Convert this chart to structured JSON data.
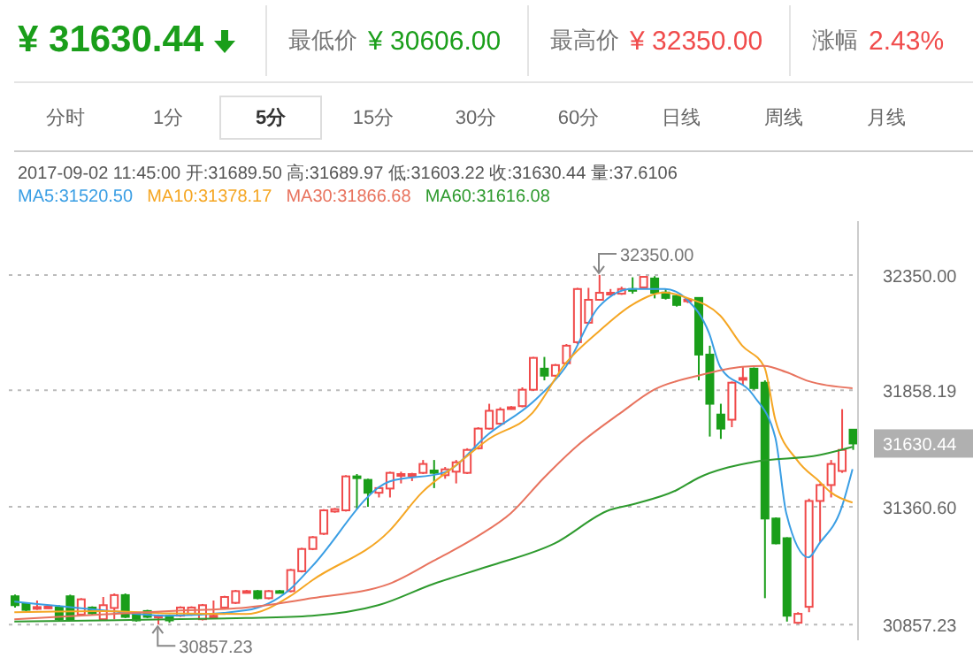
{
  "chart_data": {
    "type": "candlestick",
    "title": "¥ 31630.44",
    "subtitle": "2017-09-02 11:45:00 开:31689.50 高:31689.97 低:31603.22 收:31630.44 量:37.6106",
    "annotations": [
      "最低价 ¥ 30606.00",
      "最高价 ¥ 32350.00",
      "涨幅 2.43%",
      "分时",
      "1分",
      "5分",
      "15分",
      "30分",
      "60分",
      "日线",
      "周线",
      "月线",
      {
        "text": "32350.00",
        "y": 32350
      },
      {
        "text": "30857.23",
        "y": 30857.23
      }
    ],
    "categories": [
      null,
      null,
      null,
      null,
      null,
      null,
      null,
      null,
      null,
      null,
      null,
      null,
      null,
      null,
      null,
      null,
      null,
      null,
      null,
      null,
      null,
      null,
      null,
      null,
      null,
      null,
      null,
      null,
      null,
      null,
      null,
      null,
      null,
      null,
      null,
      null,
      null,
      null,
      null,
      null,
      null,
      null,
      null,
      null,
      null,
      null,
      null,
      null,
      null,
      null,
      null,
      null,
      null,
      null,
      null,
      null,
      null,
      null,
      null,
      null,
      null,
      null,
      null,
      null,
      null,
      null,
      null,
      null,
      null,
      null,
      null,
      null,
      null,
      null,
      null,
      null,
      null
    ],
    "ohlc": [
      [
        30978,
        30985,
        30930,
        30940
      ],
      [
        30945,
        30950,
        30915,
        30920
      ],
      [
        30925,
        30960,
        30920,
        30932
      ],
      [
        30930,
        30940,
        30925,
        30934
      ],
      [
        30930,
        30940,
        30870,
        30880
      ],
      [
        30978,
        30985,
        30875,
        30880
      ],
      [
        30900,
        30970,
        30895,
        30965
      ],
      [
        30930,
        30935,
        30900,
        30905
      ],
      [
        30880,
        30975,
        30875,
        30940
      ],
      [
        30928,
        30990,
        30880,
        30983
      ],
      [
        30983,
        30990,
        30885,
        30890
      ],
      [
        30905,
        30910,
        30870,
        30875
      ],
      [
        30915,
        30920,
        30885,
        30890
      ],
      [
        30890,
        30900,
        30857.23,
        30895
      ],
      [
        30895,
        30900,
        30865,
        30875
      ],
      [
        30895,
        30935,
        30890,
        30930
      ],
      [
        30900,
        30935,
        30895,
        30930
      ],
      [
        30880,
        30945,
        30875,
        30940
      ],
      [
        30890,
        30960,
        30885,
        30895
      ],
      [
        30930,
        30980,
        30925,
        30975
      ],
      [
        30950,
        31005,
        30945,
        31000
      ],
      [
        30995,
        31005,
        30990,
        31000
      ],
      [
        31000,
        31005,
        30965,
        30970
      ],
      [
        30970,
        31005,
        30965,
        31000
      ],
      [
        31000,
        31005,
        30990,
        30995
      ],
      [
        31000,
        31095,
        30995,
        31090
      ],
      [
        31085,
        31185,
        31080,
        31180
      ],
      [
        31180,
        31235,
        31175,
        31230
      ],
      [
        31245,
        31350,
        31240,
        31345
      ],
      [
        31340,
        31355,
        31335,
        31350
      ],
      [
        31345,
        31495,
        31340,
        31490
      ],
      [
        31490,
        31500,
        31350,
        31485
      ],
      [
        31475,
        31480,
        31360,
        31420
      ],
      [
        31420,
        31445,
        31400,
        31440
      ],
      [
        31438,
        31510,
        31400,
        31505
      ],
      [
        31495,
        31510,
        31460,
        31500
      ],
      [
        31495,
        31505,
        31470,
        31500
      ],
      [
        31505,
        31560,
        31500,
        31543
      ],
      [
        31515,
        31560,
        31440,
        31505
      ],
      [
        31495,
        31530,
        31480,
        31520
      ],
      [
        31510,
        31560,
        31460,
        31550
      ],
      [
        31505,
        31610,
        31500,
        31603
      ],
      [
        31610,
        31700,
        31605,
        31694
      ],
      [
        31694,
        31800,
        31690,
        31770
      ],
      [
        31715,
        31785,
        31710,
        31775
      ],
      [
        31780,
        31790,
        31775,
        31785
      ],
      [
        31790,
        31870,
        31785,
        31860
      ],
      [
        31860,
        32000,
        31855,
        31996
      ],
      [
        31950,
        32000,
        31900,
        31920
      ],
      [
        31920,
        31970,
        31915,
        31965
      ],
      [
        31973,
        32055,
        31968,
        32048
      ],
      [
        32063,
        32295,
        32055,
        32290
      ],
      [
        32146,
        32295,
        32140,
        32244
      ],
      [
        32244,
        32350,
        32240,
        32274
      ],
      [
        32270,
        32290,
        32265,
        32274
      ],
      [
        32270,
        32300,
        32265,
        32290
      ],
      [
        32290,
        32340,
        32270,
        32285
      ],
      [
        32297,
        32345,
        32290,
        32342
      ],
      [
        32335,
        32345,
        32250,
        32274
      ],
      [
        32275,
        32290,
        32245,
        32252
      ],
      [
        32260,
        32265,
        32215,
        32222
      ],
      [
        32240,
        32250,
        32230,
        32245
      ],
      [
        32252,
        32255,
        31900,
        32010
      ],
      [
        32010,
        32048,
        31660,
        31800
      ],
      [
        31754,
        31800,
        31650,
        31694
      ],
      [
        31732,
        31895,
        31700,
        31890
      ],
      [
        31905,
        31960,
        31880,
        31910
      ],
      [
        31950,
        31955,
        31860,
        31867
      ],
      [
        31890,
        31900,
        30970,
        31310
      ],
      [
        31310,
        31315,
        31200,
        31204
      ],
      [
        31226,
        31230,
        30870,
        30895
      ],
      [
        30865,
        30910,
        30860,
        30903
      ],
      [
        30933,
        31395,
        30910,
        31385
      ],
      [
        31385,
        31460,
        31210,
        31453
      ],
      [
        31453,
        31560,
        31400,
        31543
      ],
      [
        31513,
        31777,
        31505,
        31603
      ],
      [
        31689.5,
        31689.97,
        31603.22,
        31630.44
      ]
    ],
    "series": [
      {
        "type": "line",
        "name": "MA5:31520.50",
        "color": "#3a9ee4",
        "values": [
          30955,
          null,
          null,
          null,
          null,
          null,
          null,
          null,
          30918,
          null,
          null,
          null,
          null,
          null,
          30895,
          null,
          null,
          null,
          null,
          null,
          null,
          30918,
          null,
          null,
          null,
          31008,
          null,
          31106,
          null,
          null,
          null,
          null,
          null,
          null,
          31468,
          null,
          null,
          null,
          null,
          31507,
          null,
          null,
          null,
          31671,
          null,
          null,
          null,
          31807,
          null,
          null,
          31958,
          null,
          null,
          32214,
          null,
          null,
          32290,
          null,
          null,
          32290,
          null,
          32245,
          null,
          32101,
          31958,
          null,
          null,
          31837,
          null,
          31656,
          31332,
          null,
          31144,
          31204,
          null,
          31355,
          31520.5
        ]
      },
      {
        "type": "line",
        "name": "MA10:31378.17",
        "color": "#f5a623",
        "values": [
          30910,
          null,
          null,
          null,
          null,
          null,
          null,
          null,
          30915,
          null,
          null,
          null,
          null,
          null,
          30905,
          null,
          null,
          null,
          null,
          null,
          null,
          30902,
          null,
          null,
          null,
          30978,
          null,
          31046,
          null,
          null,
          null,
          null,
          null,
          null,
          31257,
          null,
          null,
          31423,
          null,
          null,
          31536,
          null,
          null,
          31649,
          null,
          null,
          null,
          31762,
          null,
          null,
          31973,
          null,
          null,
          32109,
          null,
          null,
          32222,
          null,
          null,
          32275,
          null,
          32252,
          null,
          null,
          32177,
          null,
          32048,
          null,
          31958,
          31732,
          null,
          31558,
          null,
          31468,
          31423,
          null,
          31378.17
        ]
      },
      {
        "type": "line",
        "name": "MA30:31866.68",
        "color": "#e8735e",
        "values": [
          30880,
          null,
          null,
          null,
          null,
          null,
          null,
          null,
          30900,
          null,
          null,
          null,
          null,
          null,
          30915,
          null,
          null,
          null,
          null,
          null,
          null,
          30930,
          null,
          null,
          null,
          null,
          null,
          30970,
          null,
          null,
          null,
          null,
          null,
          null,
          31031,
          null,
          null,
          null,
          31129,
          null,
          null,
          null,
          31234,
          null,
          null,
          31332,
          null,
          null,
          31483,
          null,
          null,
          31619,
          null,
          null,
          null,
          31762,
          null,
          null,
          31860,
          null,
          null,
          null,
          31920,
          null,
          null,
          null,
          31958,
          null,
          31962,
          null,
          31935,
          null,
          31897,
          null,
          null,
          null,
          31866.68
        ]
      },
      {
        "type": "line",
        "name": "MA60:31616.08",
        "color": "#2e9a2e",
        "values": [
          30870,
          null,
          null,
          null,
          null,
          null,
          null,
          null,
          30875,
          null,
          null,
          null,
          null,
          null,
          30880,
          null,
          null,
          null,
          null,
          null,
          null,
          30885,
          null,
          null,
          null,
          null,
          null,
          30895,
          null,
          null,
          null,
          null,
          null,
          30940,
          null,
          null,
          null,
          null,
          31031,
          null,
          null,
          null,
          null,
          31106,
          null,
          null,
          null,
          null,
          null,
          31204,
          null,
          null,
          null,
          null,
          31347,
          null,
          31370,
          null,
          null,
          null,
          31430,
          null,
          31483,
          null,
          null,
          null,
          null,
          31551,
          null,
          null,
          null,
          null,
          null,
          31581,
          null,
          null,
          31616.08
        ]
      }
    ],
    "ylim": [
      30790,
      32580
    ],
    "yticks": [
      {
        "value": 30857.23,
        "label": "30857.23"
      },
      {
        "value": 31360.6,
        "label": "31360.60"
      },
      {
        "value": 31630.44,
        "label": "31630.44"
      },
      {
        "value": 31858.19,
        "label": "31858.19"
      },
      {
        "value": 32350,
        "label": "32350.00"
      }
    ],
    "grid": "y",
    "legend": "top left",
    "tick_labels": "y"
  }
}
